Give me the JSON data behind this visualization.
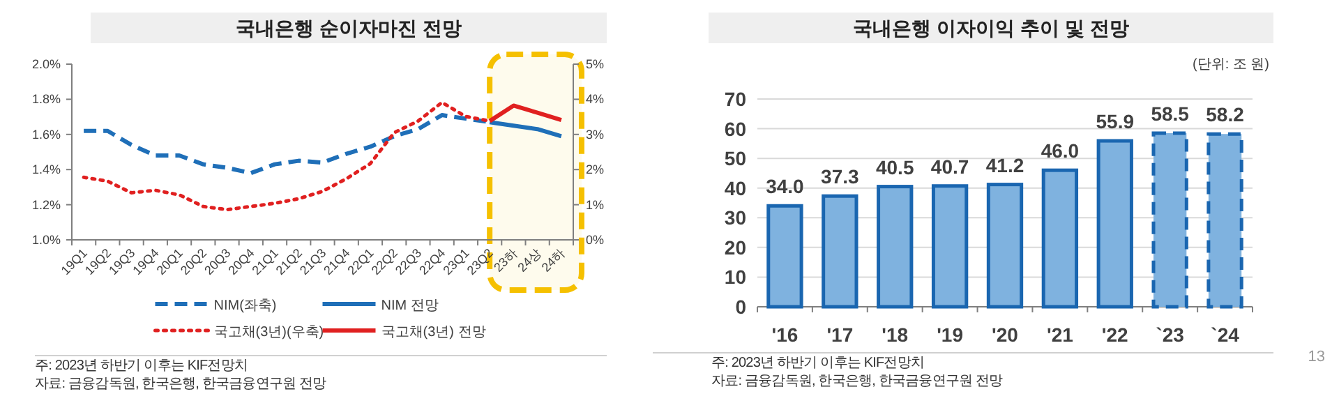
{
  "chart_data": [
    {
      "type": "line",
      "title": "국내은행 순이자마진 전망",
      "categories": [
        "19Q1",
        "19Q2",
        "19Q3",
        "19Q4",
        "20Q1",
        "20Q2",
        "20Q3",
        "20Q4",
        "21Q1",
        "21Q2",
        "21Q3",
        "21Q4",
        "22Q1",
        "22Q2",
        "22Q3",
        "22Q4",
        "23Q1",
        "23Q2",
        "23하",
        "24상",
        "24하"
      ],
      "series": [
        {
          "name": "NIM(좌축)",
          "color": "#1f6fb8",
          "line_style": "dashed",
          "values": [
            1.62,
            1.62,
            1.54,
            1.48,
            1.48,
            1.43,
            1.41,
            1.38,
            1.43,
            1.45,
            1.44,
            1.49,
            1.53,
            1.59,
            1.63,
            1.71,
            1.69,
            1.67,
            null,
            null,
            null
          ]
        },
        {
          "name": "NIM 전망",
          "color": "#1f6fb8",
          "line_style": "solid",
          "values": [
            null,
            null,
            null,
            null,
            null,
            null,
            null,
            null,
            null,
            null,
            null,
            null,
            null,
            null,
            null,
            null,
            null,
            1.67,
            1.65,
            1.63,
            1.59
          ]
        },
        {
          "name": "국고채(3년)(우축)",
          "color": "#e02020",
          "line_style": "dotted",
          "axis": "y2",
          "values": [
            1.78,
            1.67,
            1.34,
            1.41,
            1.28,
            0.95,
            0.86,
            0.95,
            1.04,
            1.17,
            1.38,
            1.74,
            2.17,
            3.05,
            3.38,
            3.91,
            3.51,
            3.38,
            null,
            null,
            null
          ]
        },
        {
          "name": "국고채(3년) 전망",
          "color": "#e02020",
          "line_style": "solid",
          "axis": "y2",
          "values": [
            null,
            null,
            null,
            null,
            null,
            null,
            null,
            null,
            null,
            null,
            null,
            null,
            null,
            null,
            null,
            null,
            null,
            3.38,
            3.82,
            3.62,
            3.41
          ]
        }
      ],
      "ylim": [
        1.0,
        2.0
      ],
      "yticks": [
        {
          "value": 1.0,
          "label": "1.0%"
        },
        {
          "value": 1.2,
          "label": "1.2%"
        },
        {
          "value": 1.4,
          "label": "1.4%"
        },
        {
          "value": 1.6,
          "label": "1.6%"
        },
        {
          "value": 1.8,
          "label": "1.8%"
        },
        {
          "value": 2.0,
          "label": "2.0%"
        }
      ],
      "y2lim": [
        0,
        5
      ],
      "y2ticks": [
        {
          "value": 0,
          "label": "0%"
        },
        {
          "value": 1,
          "label": "1%"
        },
        {
          "value": 2,
          "label": "2%"
        },
        {
          "value": 3,
          "label": "3%"
        },
        {
          "value": 4,
          "label": "4%"
        },
        {
          "value": 5,
          "label": "5%"
        }
      ],
      "bands": [
        {
          "axis": "x",
          "from": "23Q2",
          "to": "24하",
          "color": "#f5c000"
        }
      ],
      "grid": false,
      "legend": "bottom",
      "annotations": [
        "주: 2023년 하반기 이후는 KIF전망치",
        "자료: 금융감독원, 한국은행, 한국금융연구원 전망"
      ]
    },
    {
      "type": "bar",
      "title": "국내은행 이자이익 추이 및 전망",
      "ylabel": "(단위: 조 원)",
      "categories": [
        "'16",
        "'17",
        "'18",
        "'19",
        "'20",
        "'21",
        "'22",
        "`23",
        "`24"
      ],
      "series": [
        {
          "color": "#7fb2df",
          "line_style": "solid",
          "values": [
            34.0,
            37.3,
            40.5,
            40.7,
            41.2,
            46.0,
            55.9,
            null,
            null
          ],
          "value_labels": [
            "34.0",
            "37.3",
            "40.5",
            "40.7",
            "41.2",
            "46.0",
            "55.9",
            null,
            null
          ]
        },
        {
          "color": "#7fb2df",
          "line_style": "dashed",
          "values": [
            null,
            null,
            null,
            null,
            null,
            null,
            null,
            58.5,
            58.2
          ],
          "value_labels": [
            null,
            null,
            null,
            null,
            null,
            null,
            null,
            "58.5",
            "58.2"
          ]
        }
      ],
      "ylim": [
        0,
        70
      ],
      "yticks": [
        0,
        10,
        20,
        30,
        40,
        50,
        60,
        70
      ],
      "grid": "y",
      "annotations": [
        "주: 2023년 하반기 이후는 KIF전망치",
        "자료: 금융감독원, 한국은행, 한국금융연구원 전망",
        "13"
      ]
    }
  ]
}
